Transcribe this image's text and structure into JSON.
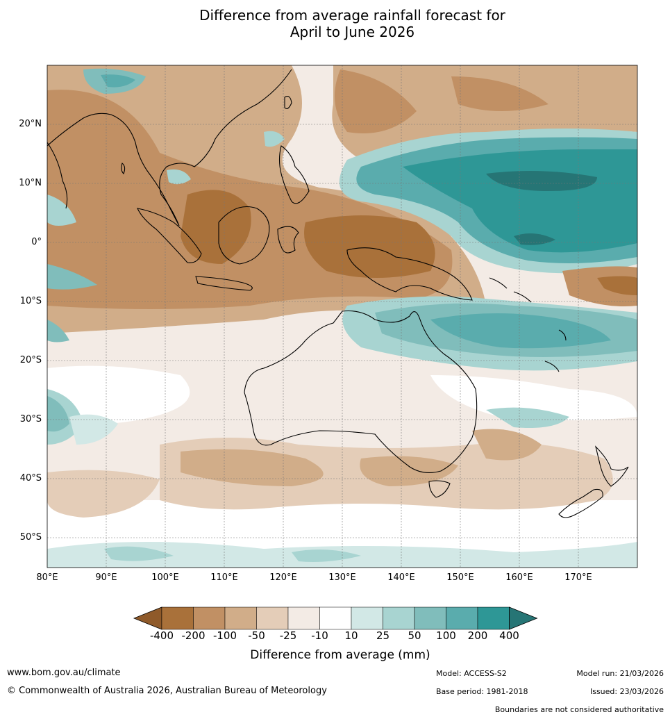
{
  "title": {
    "line1": "Difference from average rainfall forecast for",
    "line2": "April to June 2026"
  },
  "map": {
    "lat_labels": [
      "20°N",
      "10°N",
      "0°",
      "10°S",
      "20°S",
      "30°S",
      "40°S",
      "50°S"
    ],
    "lon_labels": [
      "80°E",
      "90°E",
      "100°E",
      "110°E",
      "120°E",
      "130°E",
      "140°E",
      "150°E",
      "160°E",
      "170°E"
    ]
  },
  "colorbar": {
    "labels": [
      "-400",
      "-200",
      "-100",
      "-50",
      "-25",
      "-10",
      "10",
      "25",
      "50",
      "100",
      "200",
      "400"
    ],
    "colors": [
      "#a9713a",
      "#c19064",
      "#d1ad89",
      "#e4cdb8",
      "#f3ebe5",
      "#ffffff",
      "#d2e8e6",
      "#a8d4d1",
      "#80bdbb",
      "#5aacad",
      "#2e9796"
    ],
    "extend_low_color": "#8f5a2a",
    "extend_high_color": "#267575",
    "title": "Difference from average (mm)"
  },
  "footer": {
    "website": "www.bom.gov.au/climate",
    "copyright": "© Commonwealth of Australia 2026, Australian Bureau of Meteorology",
    "model": "Model: ACCESS-S2",
    "base_period": "Base period: 1981-2018",
    "model_run": "Model run: 21/03/2026",
    "issued": "Issued: 23/03/2026",
    "disclaimer": "Boundaries are not considered authoritative"
  }
}
